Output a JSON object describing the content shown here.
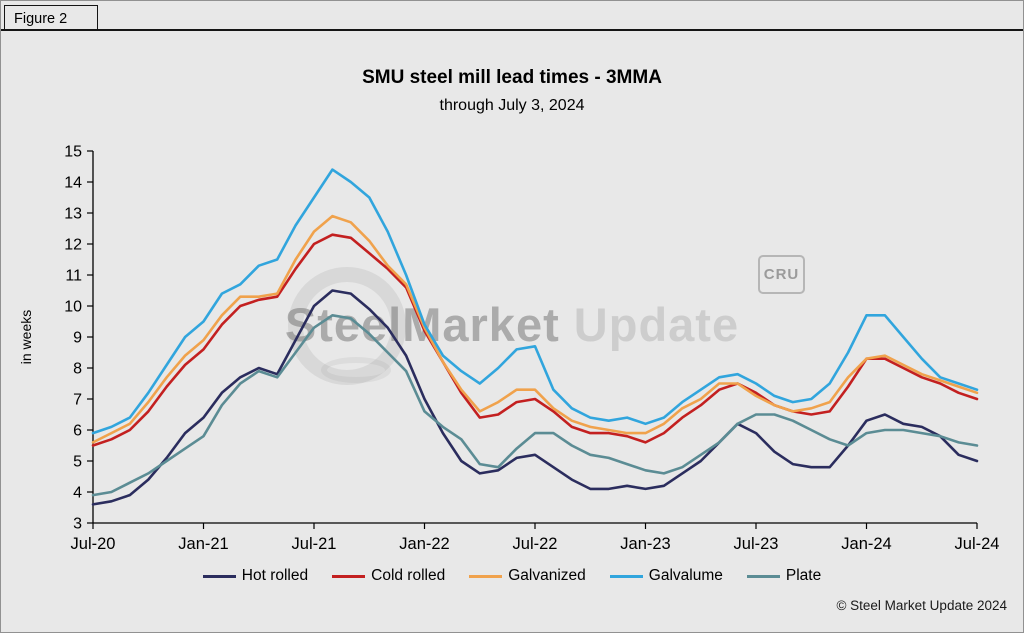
{
  "figure": {
    "label": "Figure 2"
  },
  "watermark": {
    "brand_bold": "SteelMarket",
    "brand_light": " Update",
    "cru": "CRU"
  },
  "footer": {
    "copyright": "© Steel Market Update 2024"
  },
  "chart_data": {
    "type": "line",
    "title": "SMU steel mill lead times - 3MMA",
    "subtitle": "through July 3, 2024",
    "ylabel": "in weeks",
    "ylim": [
      3,
      15
    ],
    "y_tick_step": 1,
    "grid": false,
    "legend_position": "bottom",
    "x_unit": "month",
    "x_start": "Jul-20",
    "x_end": "Jul-24",
    "x_tick_interval": 6,
    "x_tick_labels": [
      "Jul-20",
      "Jan-21",
      "Jul-21",
      "Jan-22",
      "Jul-22",
      "Jan-23",
      "Jul-23",
      "Jan-24",
      "Jul-24"
    ],
    "series": [
      {
        "name": "Hot rolled",
        "color": "#2b2d5e",
        "values": [
          3.6,
          3.7,
          3.9,
          4.4,
          5.1,
          5.9,
          6.4,
          7.2,
          7.7,
          8.0,
          7.8,
          8.9,
          10.0,
          10.5,
          10.4,
          9.9,
          9.3,
          8.4,
          7.0,
          5.9,
          5.0,
          4.6,
          4.7,
          5.1,
          5.2,
          4.8,
          4.4,
          4.1,
          4.1,
          4.2,
          4.1,
          4.2,
          4.6,
          5.0,
          5.6,
          6.2,
          5.9,
          5.3,
          4.9,
          4.8,
          4.8,
          5.5,
          6.3,
          6.5,
          6.2,
          6.1,
          5.8,
          5.2,
          5.0
        ]
      },
      {
        "name": "Cold rolled",
        "color": "#c32020",
        "values": [
          5.5,
          5.7,
          6.0,
          6.6,
          7.4,
          8.1,
          8.6,
          9.4,
          10.0,
          10.2,
          10.3,
          11.2,
          12.0,
          12.3,
          12.2,
          11.7,
          11.2,
          10.6,
          9.2,
          8.2,
          7.2,
          6.4,
          6.5,
          6.9,
          7.0,
          6.6,
          6.1,
          5.9,
          5.9,
          5.8,
          5.6,
          5.9,
          6.4,
          6.8,
          7.3,
          7.5,
          7.2,
          6.8,
          6.6,
          6.5,
          6.6,
          7.4,
          8.3,
          8.3,
          8.0,
          7.7,
          7.5,
          7.2,
          7.0
        ]
      },
      {
        "name": "Galvanized",
        "color": "#f0a24c",
        "values": [
          5.6,
          5.9,
          6.2,
          6.9,
          7.7,
          8.4,
          8.9,
          9.7,
          10.3,
          10.3,
          10.4,
          11.5,
          12.4,
          12.9,
          12.7,
          12.1,
          11.3,
          10.7,
          9.3,
          8.2,
          7.3,
          6.6,
          6.9,
          7.3,
          7.3,
          6.7,
          6.3,
          6.1,
          6.0,
          5.9,
          5.9,
          6.2,
          6.7,
          7.0,
          7.5,
          7.5,
          7.1,
          6.8,
          6.6,
          6.7,
          6.9,
          7.7,
          8.3,
          8.4,
          8.1,
          7.8,
          7.6,
          7.4,
          7.2
        ]
      },
      {
        "name": "Galvalume",
        "color": "#31a5dd",
        "values": [
          5.9,
          6.1,
          6.4,
          7.2,
          8.1,
          9.0,
          9.5,
          10.4,
          10.7,
          11.3,
          11.5,
          12.6,
          13.5,
          14.4,
          14.0,
          13.5,
          12.4,
          11.0,
          9.4,
          8.4,
          7.9,
          7.5,
          8.0,
          8.6,
          8.7,
          7.3,
          6.7,
          6.4,
          6.3,
          6.4,
          6.2,
          6.4,
          6.9,
          7.3,
          7.7,
          7.8,
          7.5,
          7.1,
          6.9,
          7.0,
          7.5,
          8.5,
          9.7,
          9.7,
          9.0,
          8.3,
          7.7,
          7.5,
          7.3
        ]
      },
      {
        "name": "Plate",
        "color": "#5b8c94",
        "values": [
          3.9,
          4.0,
          4.3,
          4.6,
          5.0,
          5.4,
          5.8,
          6.8,
          7.5,
          7.9,
          7.7,
          8.5,
          9.3,
          9.7,
          9.6,
          9.1,
          8.5,
          7.9,
          6.6,
          6.1,
          5.7,
          4.9,
          4.8,
          5.4,
          5.9,
          5.9,
          5.5,
          5.2,
          5.1,
          4.9,
          4.7,
          4.6,
          4.8,
          5.2,
          5.6,
          6.2,
          6.5,
          6.5,
          6.3,
          6.0,
          5.7,
          5.5,
          5.9,
          6.0,
          6.0,
          5.9,
          5.8,
          5.6,
          5.5
        ]
      }
    ]
  }
}
